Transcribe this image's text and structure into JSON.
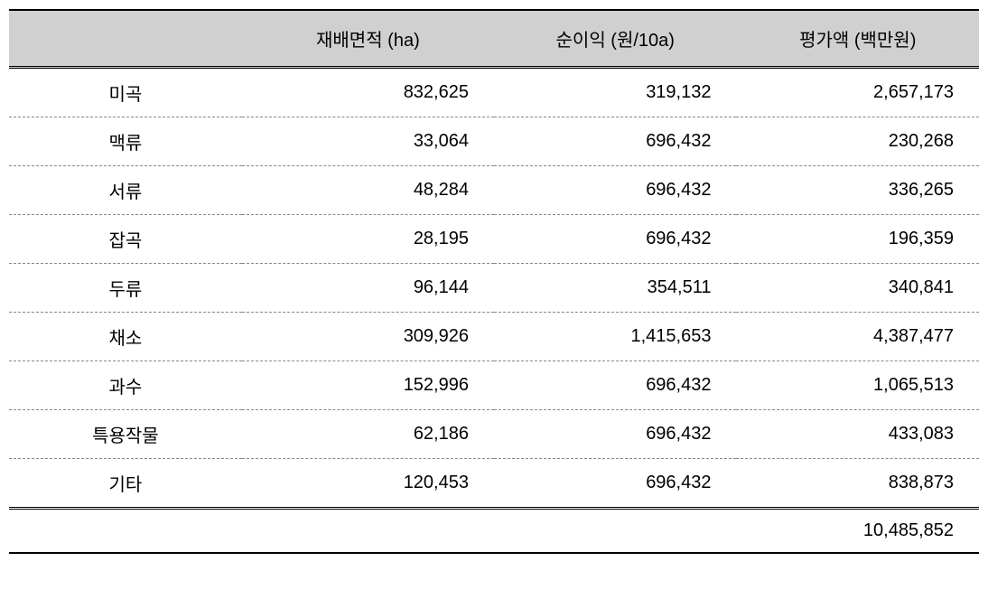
{
  "table": {
    "type": "table",
    "background_color": "#ffffff",
    "header_bg": "#d0d0d0",
    "border_color": "#000000",
    "dash_color": "#888888",
    "font_size": 20,
    "columns": [
      {
        "label": "",
        "align": "center"
      },
      {
        "label": "재배면적 (ha)",
        "align": "right"
      },
      {
        "label": "순이익 (원/10a)",
        "align": "right"
      },
      {
        "label": "평가액 (백만원)",
        "align": "right"
      }
    ],
    "rows": [
      {
        "label": "미곡",
        "area": "832,625",
        "profit": "319,132",
        "value": "2,657,173"
      },
      {
        "label": "맥류",
        "area": "33,064",
        "profit": "696,432",
        "value": "230,268"
      },
      {
        "label": "서류",
        "area": "48,284",
        "profit": "696,432",
        "value": "336,265"
      },
      {
        "label": "잡곡",
        "area": "28,195",
        "profit": "696,432",
        "value": "196,359"
      },
      {
        "label": "두류",
        "area": "96,144",
        "profit": "354,511",
        "value": "340,841"
      },
      {
        "label": "채소",
        "area": "309,926",
        "profit": "1,415,653",
        "value": "4,387,477"
      },
      {
        "label": "과수",
        "area": "152,996",
        "profit": "696,432",
        "value": "1,065,513"
      },
      {
        "label": "특용작물",
        "area": "62,186",
        "profit": "696,432",
        "value": "433,083"
      },
      {
        "label": "기타",
        "area": "120,453",
        "profit": "696,432",
        "value": "838,873"
      }
    ],
    "total": "10,485,852"
  }
}
